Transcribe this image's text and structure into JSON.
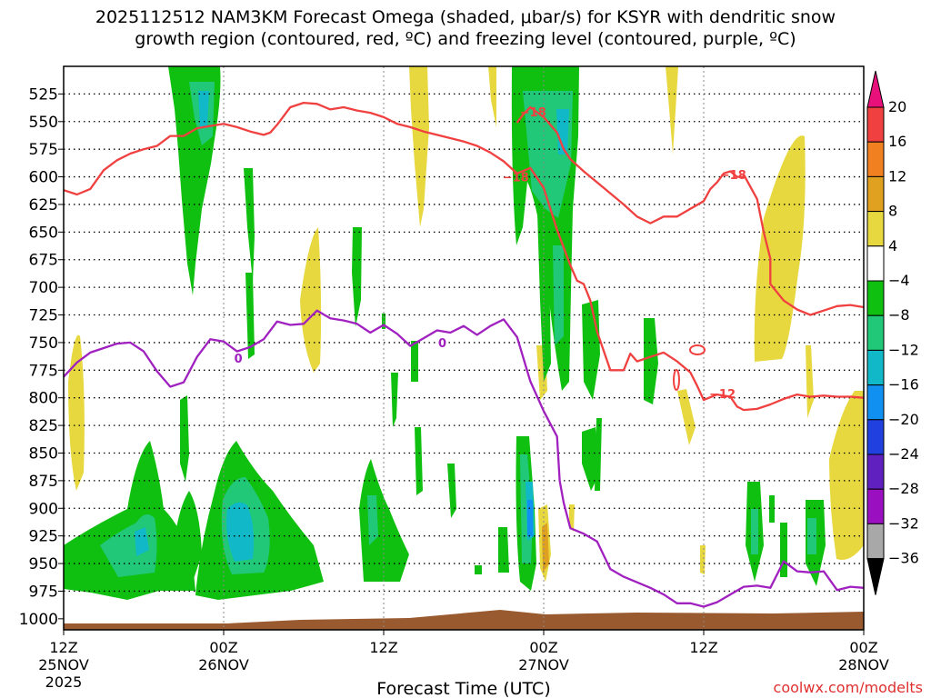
{
  "chart_data": {
    "type": "heatmap",
    "title_line1": "2025112512 NAM3KM Forecast Omega (shaded, μbar/s) for KSYR with dendritic snow",
    "title_line2": "growth region (contoured, red, ºC) and freezing level (contoured, purple, ºC)",
    "xlabel": "Forecast Time (UTC)",
    "ylabel": "",
    "credit": "coolwx.com/modelts",
    "x_ticks": [
      {
        "hours": 0,
        "line1": "12Z",
        "line2": "25NOV",
        "line3": "2025"
      },
      {
        "hours": 12,
        "line1": "00Z",
        "line2": "26NOV",
        "line3": ""
      },
      {
        "hours": 24,
        "line1": "12Z",
        "line2": "",
        "line3": ""
      },
      {
        "hours": 36,
        "line1": "00Z",
        "line2": "27NOV",
        "line3": ""
      },
      {
        "hours": 48,
        "line1": "12Z",
        "line2": "",
        "line3": ""
      },
      {
        "hours": 60,
        "line1": "00Z",
        "line2": "28NOV",
        "line3": ""
      }
    ],
    "xlim": [
      0,
      60
    ],
    "y_levels": [
      525,
      550,
      575,
      600,
      625,
      650,
      675,
      700,
      725,
      750,
      775,
      800,
      825,
      850,
      875,
      900,
      925,
      950,
      975,
      1000
    ],
    "ylim_hpa": [
      500,
      1010
    ],
    "colorbar": {
      "boundaries": [
        "20",
        "16",
        "12",
        "8",
        "4",
        "−4",
        "−8",
        "−12",
        "−16",
        "−20",
        "−24",
        "−28",
        "−32",
        "−36"
      ],
      "colors": [
        "#e8107a",
        "#f04040",
        "#f08020",
        "#e0a020",
        "#e8d840",
        "#ffffff",
        "#10c010",
        "#20c878",
        "#10b8c8",
        "#1090f0",
        "#2040e0",
        "#6020c0",
        "#9a10c0",
        "#a8a8a8",
        "#000000"
      ]
    },
    "contour_labels": [
      {
        "text": "−18",
        "x_hours": 35.2,
        "y_hpa": 541
      },
      {
        "text": "−18",
        "x_hours": 33.9,
        "y_hpa": 600
      },
      {
        "text": "−18",
        "x_hours": 50.2,
        "y_hpa": 598
      },
      {
        "text": "−12",
        "x_hours": 49.4,
        "y_hpa": 796
      },
      {
        "text": "0",
        "x_hours": 13.1,
        "y_hpa": 764
      },
      {
        "text": "0",
        "x_hours": 28.4,
        "y_hpa": 750
      }
    ],
    "series": [
      {
        "name": "−18",
        "color": "#f04040",
        "points": [
          [
            0,
            612
          ],
          [
            1,
            616
          ],
          [
            2,
            611
          ],
          [
            3,
            594
          ],
          [
            4,
            585
          ],
          [
            5,
            579
          ],
          [
            6,
            575
          ],
          [
            7,
            572
          ],
          [
            8,
            563
          ],
          [
            9,
            563
          ],
          [
            10,
            556
          ],
          [
            11,
            554
          ],
          [
            12,
            552
          ],
          [
            13,
            555
          ],
          [
            14,
            559
          ],
          [
            15,
            562
          ],
          [
            15.5,
            560
          ],
          [
            16,
            553
          ],
          [
            17,
            537
          ],
          [
            18,
            533
          ],
          [
            19,
            534
          ],
          [
            20,
            539
          ],
          [
            21,
            537
          ],
          [
            22,
            540
          ],
          [
            23,
            542
          ],
          [
            24,
            546
          ],
          [
            25,
            552
          ],
          [
            26,
            555
          ],
          [
            27,
            559
          ],
          [
            28,
            562
          ],
          [
            29,
            565
          ],
          [
            30,
            568
          ],
          [
            31,
            572
          ],
          [
            32,
            578
          ],
          [
            33,
            586
          ],
          [
            34,
            597
          ]
        ]
      },
      {
        "name": "−18",
        "color": "#f04040",
        "points": [
          [
            34,
            551
          ],
          [
            34.5,
            543
          ],
          [
            35,
            537
          ],
          [
            36,
            546
          ],
          [
            37,
            560
          ],
          [
            37.5,
            575
          ],
          [
            38,
            584
          ],
          [
            39,
            595
          ],
          [
            40,
            605
          ],
          [
            41,
            615
          ],
          [
            42,
            625
          ],
          [
            43,
            636
          ],
          [
            44,
            642
          ],
          [
            45,
            636
          ],
          [
            46,
            636
          ],
          [
            47,
            629
          ],
          [
            48,
            622
          ],
          [
            48.5,
            611
          ],
          [
            49,
            605
          ],
          [
            49.5,
            597
          ],
          [
            50,
            595
          ],
          [
            50.5,
            600
          ],
          [
            51,
            600
          ],
          [
            51,
            598
          ]
        ]
      },
      {
        "name": "−12",
        "color": "#f04040",
        "points": [
          [
            34,
            597
          ],
          [
            35,
            592
          ],
          [
            36,
            610
          ],
          [
            37,
            648
          ],
          [
            38,
            680
          ],
          [
            38.5,
            694
          ],
          [
            39,
            697
          ],
          [
            39.5,
            712
          ],
          [
            40,
            740
          ],
          [
            41,
            775
          ],
          [
            42,
            775
          ],
          [
            42.5,
            760
          ],
          [
            43,
            767
          ],
          [
            44,
            763
          ],
          [
            45,
            759
          ],
          [
            46,
            767
          ],
          [
            47,
            777
          ],
          [
            47.5,
            789
          ],
          [
            48,
            802
          ],
          [
            49,
            797
          ],
          [
            50,
            799
          ],
          [
            50.5,
            808
          ],
          [
            51,
            811
          ],
          [
            52,
            810
          ],
          [
            53,
            806
          ],
          [
            54,
            801
          ],
          [
            55,
            797
          ],
          [
            56,
            799
          ],
          [
            57,
            798
          ],
          [
            58,
            799
          ],
          [
            59,
            799
          ],
          [
            60,
            800
          ]
        ]
      },
      {
        "name": "−12",
        "color": "#f04040",
        "points": [
          [
            51,
            598
          ],
          [
            52,
            620
          ],
          [
            52.5,
            650
          ],
          [
            53,
            674
          ],
          [
            53,
            697
          ],
          [
            54,
            712
          ],
          [
            55,
            720
          ],
          [
            56,
            725
          ],
          [
            57,
            721
          ],
          [
            58,
            717
          ],
          [
            59,
            716
          ],
          [
            60,
            718
          ]
        ]
      },
      {
        "name": "0",
        "color": "#a020c0",
        "points": [
          [
            0,
            781
          ],
          [
            1,
            768
          ],
          [
            2,
            759
          ],
          [
            3,
            755
          ],
          [
            4,
            751
          ],
          [
            5,
            750
          ],
          [
            6,
            758
          ],
          [
            7,
            776
          ],
          [
            8,
            790
          ],
          [
            9,
            786
          ],
          [
            10,
            763
          ],
          [
            11,
            747
          ],
          [
            12,
            749
          ],
          [
            13,
            758
          ],
          [
            14,
            754
          ],
          [
            15,
            747
          ],
          [
            16,
            731
          ],
          [
            17,
            734
          ],
          [
            18,
            733
          ],
          [
            19,
            721
          ],
          [
            20,
            728
          ],
          [
            21,
            730
          ],
          [
            22,
            733
          ],
          [
            23,
            741
          ],
          [
            24,
            734
          ],
          [
            25,
            742
          ],
          [
            26,
            753
          ],
          [
            27,
            746
          ],
          [
            28,
            739
          ],
          [
            29,
            741
          ],
          [
            30,
            735
          ],
          [
            31,
            743
          ],
          [
            32,
            735
          ],
          [
            33,
            729
          ],
          [
            34,
            745
          ],
          [
            35,
            785
          ],
          [
            36,
            812
          ],
          [
            37,
            835
          ],
          [
            37.2,
            875
          ],
          [
            37.5,
            895
          ],
          [
            38,
            918
          ],
          [
            39,
            923
          ],
          [
            40,
            930
          ],
          [
            41,
            955
          ],
          [
            42,
            962
          ],
          [
            43,
            967
          ],
          [
            44,
            972
          ],
          [
            45,
            978
          ],
          [
            46,
            986
          ],
          [
            47,
            986
          ],
          [
            48,
            989
          ],
          [
            49,
            985
          ],
          [
            50,
            978
          ],
          [
            51,
            971
          ],
          [
            52,
            970
          ],
          [
            53,
            972
          ],
          [
            54,
            948
          ],
          [
            55,
            957
          ],
          [
            56,
            958
          ],
          [
            57,
            957
          ],
          [
            58,
            974
          ],
          [
            59,
            971
          ],
          [
            60,
            972
          ]
        ]
      }
    ]
  }
}
